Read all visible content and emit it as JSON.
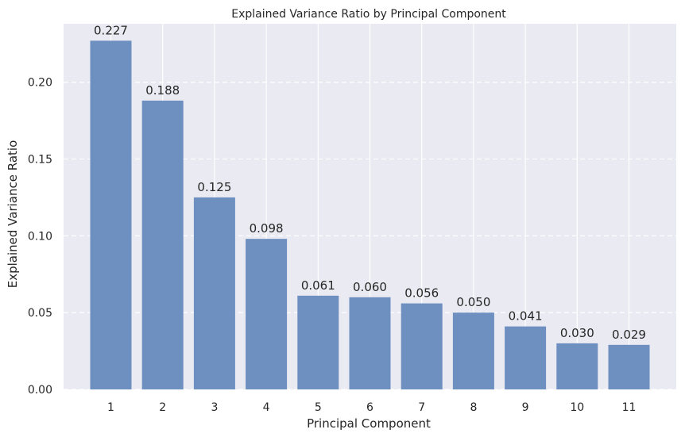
{
  "chart_data": {
    "type": "bar",
    "title": "Explained Variance Ratio by Principal Component",
    "xlabel": "Principal Component",
    "ylabel": "Explained Variance Ratio",
    "categories": [
      "1",
      "2",
      "3",
      "4",
      "5",
      "6",
      "7",
      "8",
      "9",
      "10",
      "11"
    ],
    "values": [
      0.227,
      0.188,
      0.125,
      0.098,
      0.061,
      0.06,
      0.056,
      0.05,
      0.041,
      0.03,
      0.029
    ],
    "value_labels": [
      "0.227",
      "0.188",
      "0.125",
      "0.098",
      "0.061",
      "0.060",
      "0.056",
      "0.050",
      "0.041",
      "0.030",
      "0.029"
    ],
    "yticks": [
      "0.00",
      "0.05",
      "0.10",
      "0.15",
      "0.20"
    ],
    "ytick_values": [
      0,
      0.05,
      0.1,
      0.15,
      0.2
    ],
    "ylim": [
      0,
      0.238
    ],
    "grid": true,
    "colors": {
      "bar": "#6b8ec0",
      "plot_bg": "#eaeaf2",
      "grid": "#ffffff",
      "text": "#262626"
    }
  }
}
